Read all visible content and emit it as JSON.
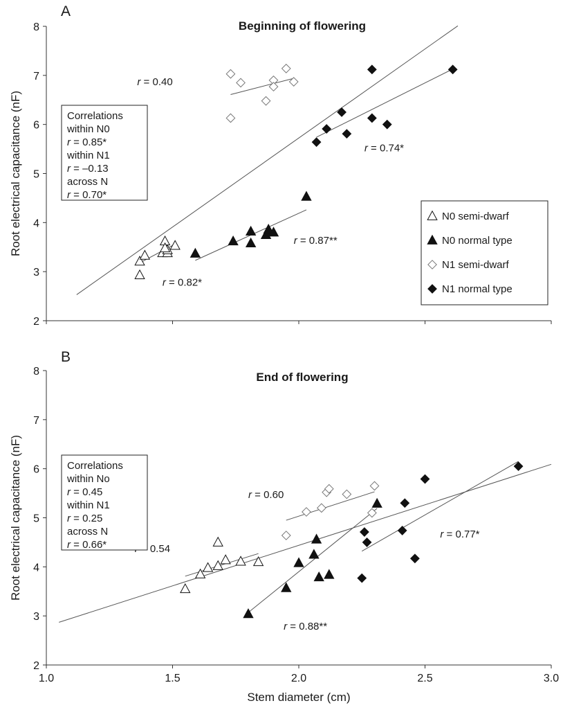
{
  "figure": {
    "xlabel": "Stem diameter (cm)",
    "xticks": [
      "1.0",
      "1.5",
      "2.0",
      "2.5",
      "3.0"
    ],
    "yticks": [
      "2",
      "3",
      "4",
      "5",
      "6",
      "7",
      "8"
    ]
  },
  "chart_data": [
    {
      "type": "scatter",
      "panel": "A",
      "title": "Beginning of flowering",
      "xlabel": "Stem diameter (cm)",
      "ylabel": "Root electrical capacitance (nF)",
      "xlim": [
        1.0,
        3.0
      ],
      "ylim": [
        2,
        8
      ],
      "legend_position": "lower right",
      "legend": [
        {
          "label": "N0 semi-dwarf",
          "marker": "triangle-open"
        },
        {
          "label": "N0 normal type",
          "marker": "triangle-filled"
        },
        {
          "label": "N1 semi-dwarf",
          "marker": "diamond-open"
        },
        {
          "label": "N1 normal type",
          "marker": "diamond-filled"
        }
      ],
      "series": [
        {
          "name": "N0 semi-dwarf",
          "marker": "triangle-open",
          "x": [
            1.37,
            1.37,
            1.39,
            1.46,
            1.47,
            1.48,
            1.48,
            1.47,
            1.51
          ],
          "y": [
            2.93,
            3.21,
            3.33,
            3.38,
            3.62,
            3.38,
            3.44,
            3.48,
            3.53
          ]
        },
        {
          "name": "N0 normal type",
          "marker": "triangle-filled",
          "x": [
            1.59,
            1.74,
            1.81,
            1.81,
            1.87,
            1.88,
            1.88,
            1.9,
            2.03
          ],
          "y": [
            3.37,
            3.62,
            3.58,
            3.82,
            3.75,
            3.81,
            3.86,
            3.8,
            4.53
          ]
        },
        {
          "name": "N1 semi-dwarf",
          "marker": "diamond-open",
          "x": [
            1.73,
            1.73,
            1.77,
            1.87,
            1.9,
            1.9,
            1.95,
            1.98
          ],
          "y": [
            7.03,
            6.13,
            6.85,
            6.48,
            6.9,
            6.77,
            7.14,
            6.87
          ]
        },
        {
          "name": "N1 normal type",
          "marker": "diamond-filled",
          "x": [
            2.07,
            2.11,
            2.17,
            2.19,
            2.29,
            2.29,
            2.35,
            2.61
          ],
          "y": [
            5.64,
            5.91,
            6.25,
            5.81,
            7.12,
            6.13,
            6.0,
            7.12
          ]
        }
      ],
      "fit_lines": [
        {
          "x": [
            1.37,
            1.51
          ],
          "y": [
            3.18,
            3.56
          ]
        },
        {
          "x": [
            1.59,
            2.03
          ],
          "y": [
            3.23,
            4.26
          ]
        },
        {
          "x": [
            1.73,
            1.98
          ],
          "y": [
            6.61,
            6.94
          ]
        },
        {
          "x": [
            2.07,
            2.61
          ],
          "y": [
            5.74,
            7.13
          ]
        },
        {
          "x": [
            1.12,
            2.63
          ],
          "y": [
            2.53,
            8.01
          ]
        }
      ],
      "r_labels": [
        {
          "name": "N1 semi-dwarf",
          "value": " = 0.40",
          "x": 1.36,
          "y": 6.8
        },
        {
          "name": "N1 normal type",
          "value": " = 0.74*",
          "x": 2.26,
          "y": 5.45
        },
        {
          "name": "N0 normal type",
          "value": " = 0.87**",
          "x": 1.98,
          "y": 3.57
        },
        {
          "name": "N0 semi-dwarf",
          "value": " = 0.82*",
          "x": 1.46,
          "y": 2.71
        }
      ],
      "correlations": [
        "Correlations",
        "within N0",
        " = 0.85*",
        "within N1",
        " = –0.13",
        "across N",
        " = 0.70*"
      ]
    },
    {
      "type": "scatter",
      "panel": "B",
      "title": "End of flowering",
      "xlabel": "Stem diameter (cm)",
      "ylabel": "Root electrical capacitance (nF)",
      "xlim": [
        1.0,
        3.0
      ],
      "ylim": [
        2,
        8
      ],
      "series": [
        {
          "name": "N0 semi-dwarf",
          "marker": "triangle-open",
          "x": [
            1.55,
            1.61,
            1.64,
            1.68,
            1.68,
            1.71,
            1.77,
            1.84
          ],
          "y": [
            3.55,
            3.85,
            3.98,
            4.02,
            4.5,
            4.14,
            4.11,
            4.1
          ]
        },
        {
          "name": "N0 normal type",
          "marker": "triangle-filled",
          "x": [
            1.8,
            1.95,
            2.0,
            2.06,
            2.07,
            2.08,
            2.12,
            2.31
          ],
          "y": [
            3.04,
            3.57,
            4.08,
            4.25,
            4.56,
            3.79,
            3.84,
            5.29
          ]
        },
        {
          "name": "N1 semi-dwarf",
          "marker": "diamond-open",
          "x": [
            1.95,
            2.03,
            2.09,
            2.11,
            2.12,
            2.19,
            2.29,
            2.3
          ],
          "y": [
            4.64,
            5.12,
            5.2,
            5.52,
            5.59,
            5.48,
            5.1,
            5.65
          ]
        },
        {
          "name": "N1 normal type",
          "marker": "diamond-filled",
          "x": [
            2.25,
            2.26,
            2.27,
            2.41,
            2.42,
            2.46,
            2.5,
            2.87
          ],
          "y": [
            3.77,
            4.71,
            4.5,
            4.74,
            5.3,
            4.17,
            5.79,
            6.05
          ]
        }
      ],
      "fit_lines": [
        {
          "x": [
            1.55,
            1.84
          ],
          "y": [
            3.81,
            4.27
          ]
        },
        {
          "x": [
            1.8,
            2.31
          ],
          "y": [
            3.07,
            5.19
          ]
        },
        {
          "x": [
            1.95,
            2.3
          ],
          "y": [
            4.95,
            5.53
          ]
        },
        {
          "x": [
            2.25,
            2.87
          ],
          "y": [
            4.32,
            6.15
          ]
        },
        {
          "x": [
            1.05,
            3.0
          ],
          "y": [
            2.87,
            6.09
          ]
        }
      ],
      "r_labels": [
        {
          "name": "N1 semi-dwarf",
          "value": " = 0.60",
          "x": 1.8,
          "y": 5.4
        },
        {
          "name": "N0 semi-dwarf",
          "value": " = 0.54",
          "x": 1.35,
          "y": 4.3
        },
        {
          "name": "N1 normal type",
          "value": " = 0.77*",
          "x": 2.56,
          "y": 4.6
        },
        {
          "name": "N0 normal type",
          "value": " = 0.88**",
          "x": 1.94,
          "y": 2.72
        }
      ],
      "correlations": [
        "Correlations",
        "within No",
        " = 0.45",
        "within N1",
        " = 0.25",
        "across N",
        " = 0.66*"
      ]
    }
  ]
}
